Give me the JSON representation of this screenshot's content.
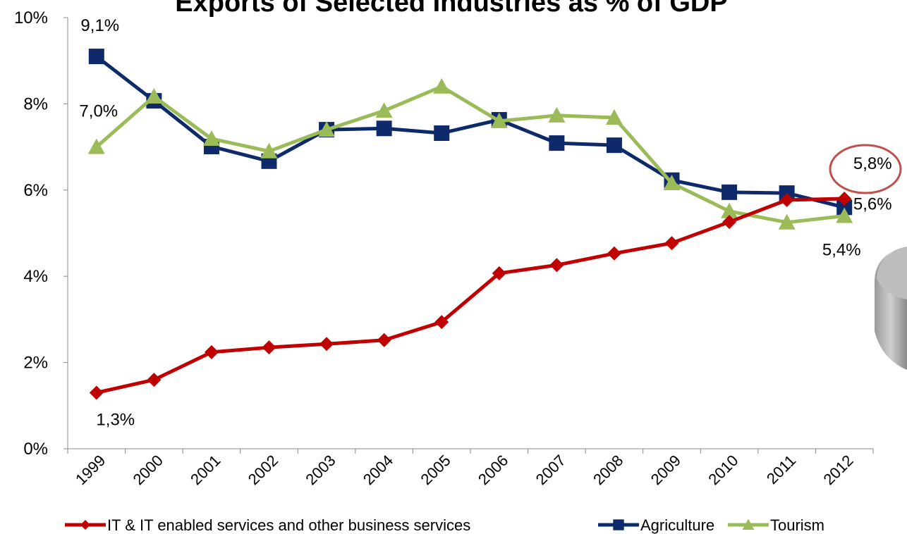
{
  "chart_data": {
    "type": "line",
    "title": "Exports of Selected Industries as % of GDP",
    "categories": [
      "1999",
      "2000",
      "2001",
      "2002",
      "2003",
      "2004",
      "2005",
      "2006",
      "2007",
      "2008",
      "2009",
      "2010",
      "2011",
      "2012"
    ],
    "series": [
      {
        "name": "IT & IT enabled services and other business services",
        "color": "#c00000",
        "marker": "diamond",
        "values": [
          1.3,
          1.6,
          2.24,
          2.35,
          2.43,
          2.52,
          2.94,
          4.07,
          4.26,
          4.53,
          4.77,
          5.26,
          5.77,
          5.8
        ],
        "value_labels": [
          "1,3%",
          null,
          null,
          null,
          null,
          null,
          null,
          null,
          null,
          null,
          null,
          null,
          null,
          "5,8%"
        ]
      },
      {
        "name": "Agriculture",
        "color": "#0e2a6b",
        "marker": "square",
        "values": [
          9.1,
          8.07,
          7.01,
          6.67,
          7.4,
          7.43,
          7.32,
          7.63,
          7.09,
          7.04,
          6.23,
          5.95,
          5.93,
          5.6
        ],
        "value_labels": [
          "9,1%",
          null,
          null,
          null,
          null,
          null,
          null,
          null,
          null,
          null,
          null,
          null,
          null,
          "5,6%"
        ]
      },
      {
        "name": "Tourism",
        "color": "#9bbb59",
        "marker": "triangle",
        "values": [
          7.0,
          8.17,
          7.19,
          6.9,
          7.4,
          7.84,
          8.4,
          7.6,
          7.73,
          7.68,
          6.16,
          5.51,
          5.25,
          5.4
        ],
        "value_labels": [
          "7,0%",
          null,
          null,
          null,
          null,
          null,
          null,
          null,
          null,
          null,
          null,
          null,
          null,
          "5,4%"
        ]
      }
    ],
    "ylim": [
      0,
      10
    ],
    "yticks": [
      {
        "value": 0,
        "label": "0%"
      },
      {
        "value": 2,
        "label": "2%"
      },
      {
        "value": 4,
        "label": "4%"
      },
      {
        "value": 6,
        "label": "6%"
      },
      {
        "value": 8,
        "label": "8%"
      },
      {
        "value": 10,
        "label": "10%"
      }
    ],
    "legend": "bottom"
  }
}
